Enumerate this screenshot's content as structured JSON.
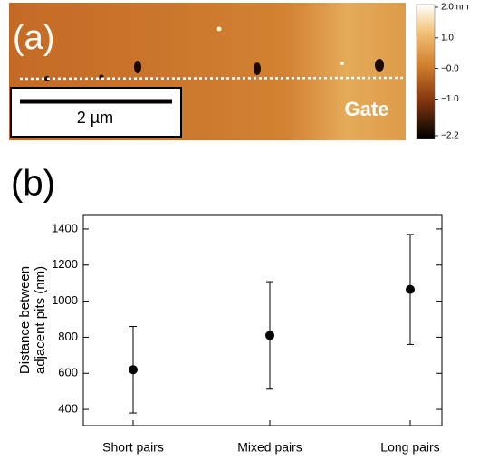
{
  "panel_a": {
    "label": "(a)",
    "scale_bar": "2 µm",
    "region_label": "Gate",
    "colorbar": {
      "lim": [
        -2.2,
        2.0
      ],
      "ticks": [
        {
          "value": 2.0,
          "label": "2.0 nm"
        },
        {
          "value": 1.0,
          "label": "1.0"
        },
        {
          "value": 0,
          "label": "−0.0"
        },
        {
          "value": -1.0,
          "label": "−1.0"
        },
        {
          "value": -2.2,
          "label": "−2.2"
        }
      ]
    }
  },
  "panel_b_label": "(b)",
  "chart_data": {
    "type": "errorbar",
    "ylabel": [
      "Distance between",
      "adjacent pits (nm)"
    ],
    "categories": [
      "Short pairs",
      "Mixed pairs",
      "Long pairs"
    ],
    "values": [
      620,
      810,
      1065
    ],
    "errors": [
      240,
      298,
      305
    ],
    "color": "#000000",
    "ylim": [
      310,
      1480
    ],
    "yticks": [
      400,
      600,
      800,
      1000,
      1200,
      1400
    ]
  }
}
